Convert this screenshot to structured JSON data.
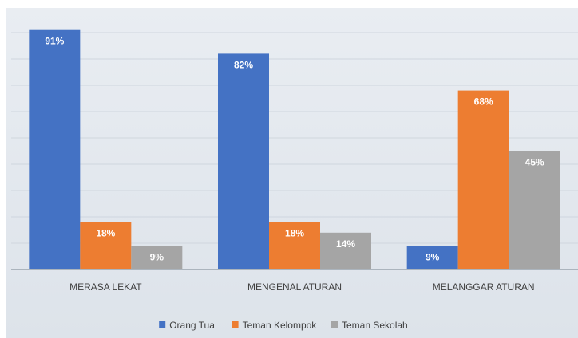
{
  "chart_data": {
    "type": "bar",
    "categories": [
      "MERASA LEKAT",
      "MENGENAL ATURAN",
      "MELANGGAR ATURAN"
    ],
    "series": [
      {
        "name": "Orang Tua",
        "color": "#4472c4",
        "values": [
          91,
          82,
          9
        ],
        "labels": [
          "91%",
          "82%",
          "9%"
        ]
      },
      {
        "name": "Teman Kelompok",
        "color": "#ed7d31",
        "values": [
          18,
          18,
          68
        ],
        "labels": [
          "18%",
          "18%",
          "68%"
        ]
      },
      {
        "name": "Teman Sekolah",
        "color": "#a5a5a5",
        "values": [
          9,
          14,
          45
        ],
        "labels": [
          "9%",
          "14%",
          "45%"
        ]
      }
    ],
    "ylim": [
      0,
      100
    ],
    "grid": true,
    "legend_position": "bottom",
    "title": "",
    "xlabel": "",
    "ylabel": ""
  }
}
